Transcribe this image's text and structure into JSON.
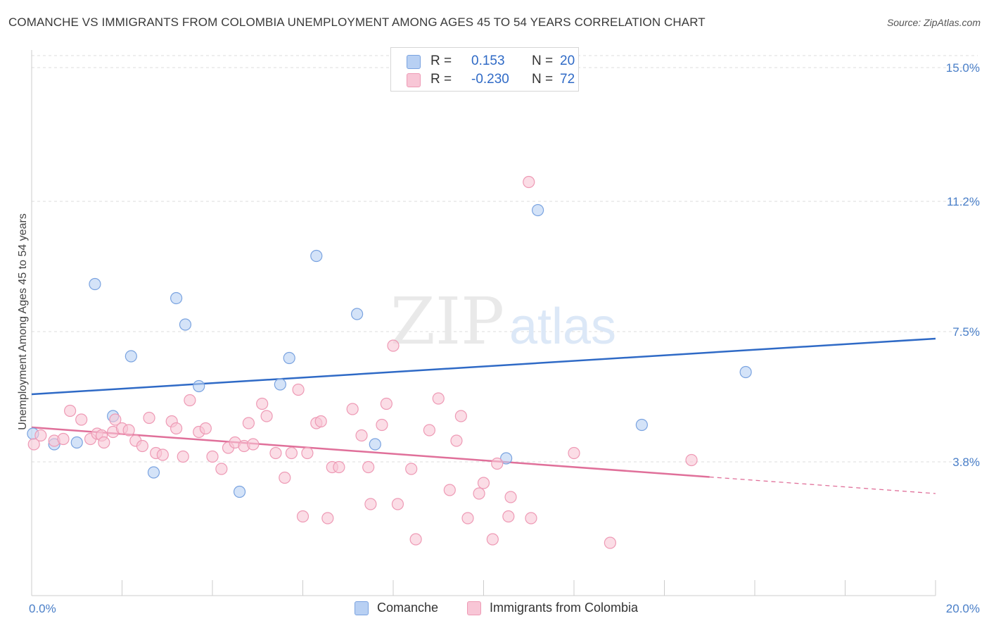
{
  "header": {
    "title": "COMANCHE VS IMMIGRANTS FROM COLOMBIA UNEMPLOYMENT AMONG AGES 45 TO 54 YEARS CORRELATION CHART",
    "source": "Source: ZipAtlas.com"
  },
  "watermark": {
    "zip": "ZIP",
    "atlas": "atlas"
  },
  "legend_top": {
    "rows": [
      {
        "r_label": "R =",
        "r_value": "0.153",
        "n_label": "N =",
        "n_value": "20"
      },
      {
        "r_label": "R =",
        "r_value": "-0.230",
        "n_label": "N =",
        "n_value": "72"
      }
    ]
  },
  "legend_bottom": {
    "items": [
      {
        "label": "Comanche"
      },
      {
        "label": "Immigrants from Colombia"
      }
    ]
  },
  "colors": {
    "comanche_fill": "#b8d0f3",
    "comanche_stroke": "#7aa3e0",
    "comanche_line": "#2f6ac6",
    "colombia_fill": "#f8c6d6",
    "colombia_stroke": "#ee9ab5",
    "colombia_line": "#e0709a",
    "tick_label": "#4a7fc8",
    "grid": "#dddddd"
  },
  "chart_data": {
    "type": "scatter",
    "ylabel": "Unemployment Among Ages 45 to 54 years",
    "xlim": [
      0,
      20
    ],
    "ylim": [
      0,
      15.5
    ],
    "x_tick_labels": [
      "0.0%",
      "20.0%"
    ],
    "y_ticks": [
      3.8,
      7.5,
      11.2,
      15.0
    ],
    "y_tick_labels": [
      "3.8%",
      "7.5%",
      "11.2%",
      "15.0%"
    ],
    "grid": "horizontal dashed",
    "series": [
      {
        "name": "Comanche",
        "points": [
          [
            0.03,
            4.6
          ],
          [
            0.5,
            4.3
          ],
          [
            1.0,
            4.35
          ],
          [
            1.4,
            8.85
          ],
          [
            1.8,
            5.1
          ],
          [
            2.2,
            6.8
          ],
          [
            2.7,
            3.5
          ],
          [
            3.2,
            8.45
          ],
          [
            3.4,
            7.7
          ],
          [
            3.7,
            5.95
          ],
          [
            4.6,
            2.95
          ],
          [
            5.5,
            6.0
          ],
          [
            5.7,
            6.75
          ],
          [
            6.3,
            9.65
          ],
          [
            7.2,
            8.0
          ],
          [
            7.6,
            4.3
          ],
          [
            10.5,
            3.9
          ],
          [
            11.2,
            10.95
          ],
          [
            13.5,
            4.85
          ],
          [
            15.8,
            6.35
          ]
        ],
        "trend": {
          "x0": 0,
          "y0": 5.72,
          "x1": 20,
          "y1": 7.3,
          "dashed_from_x": null
        }
      },
      {
        "name": "Immigrants from Colombia",
        "points": [
          [
            0.05,
            4.3
          ],
          [
            0.2,
            4.55
          ],
          [
            0.5,
            4.4
          ],
          [
            0.7,
            4.45
          ],
          [
            0.85,
            5.25
          ],
          [
            1.1,
            5.0
          ],
          [
            1.3,
            4.45
          ],
          [
            1.45,
            4.6
          ],
          [
            1.55,
            4.55
          ],
          [
            1.6,
            4.35
          ],
          [
            1.8,
            4.65
          ],
          [
            1.85,
            5.0
          ],
          [
            2.0,
            4.75
          ],
          [
            2.15,
            4.7
          ],
          [
            2.3,
            4.4
          ],
          [
            2.45,
            4.25
          ],
          [
            2.6,
            5.05
          ],
          [
            2.75,
            4.05
          ],
          [
            2.9,
            4.0
          ],
          [
            3.1,
            4.95
          ],
          [
            3.2,
            4.75
          ],
          [
            3.35,
            3.95
          ],
          [
            3.5,
            5.55
          ],
          [
            3.7,
            4.65
          ],
          [
            3.85,
            4.75
          ],
          [
            4.0,
            3.95
          ],
          [
            4.2,
            3.6
          ],
          [
            4.35,
            4.2
          ],
          [
            4.5,
            4.35
          ],
          [
            4.7,
            4.25
          ],
          [
            4.8,
            4.9
          ],
          [
            4.9,
            4.3
          ],
          [
            5.1,
            5.45
          ],
          [
            5.2,
            5.1
          ],
          [
            5.4,
            4.05
          ],
          [
            5.6,
            3.35
          ],
          [
            5.75,
            4.05
          ],
          [
            5.9,
            5.85
          ],
          [
            6.0,
            2.25
          ],
          [
            6.1,
            4.05
          ],
          [
            6.3,
            4.9
          ],
          [
            6.4,
            4.95
          ],
          [
            6.55,
            2.2
          ],
          [
            6.65,
            3.65
          ],
          [
            6.8,
            3.65
          ],
          [
            7.1,
            5.3
          ],
          [
            7.3,
            4.55
          ],
          [
            7.45,
            3.65
          ],
          [
            7.5,
            2.6
          ],
          [
            7.75,
            4.85
          ],
          [
            7.85,
            5.45
          ],
          [
            8.0,
            7.1
          ],
          [
            8.1,
            2.6
          ],
          [
            8.4,
            3.6
          ],
          [
            8.5,
            1.6
          ],
          [
            8.8,
            4.7
          ],
          [
            9.0,
            5.6
          ],
          [
            9.25,
            3.0
          ],
          [
            9.4,
            4.4
          ],
          [
            9.5,
            5.1
          ],
          [
            9.65,
            2.2
          ],
          [
            9.9,
            2.9
          ],
          [
            10.0,
            3.2
          ],
          [
            10.2,
            1.6
          ],
          [
            10.3,
            3.75
          ],
          [
            10.55,
            2.25
          ],
          [
            10.6,
            2.8
          ],
          [
            11.05,
            2.2
          ],
          [
            11.0,
            11.75
          ],
          [
            12.0,
            4.05
          ],
          [
            12.8,
            1.5
          ],
          [
            14.6,
            3.85
          ]
        ],
        "trend": {
          "x0": 0,
          "y0": 4.78,
          "x1": 20,
          "y1": 2.9,
          "dashed_from_x": 15.0
        }
      }
    ]
  }
}
